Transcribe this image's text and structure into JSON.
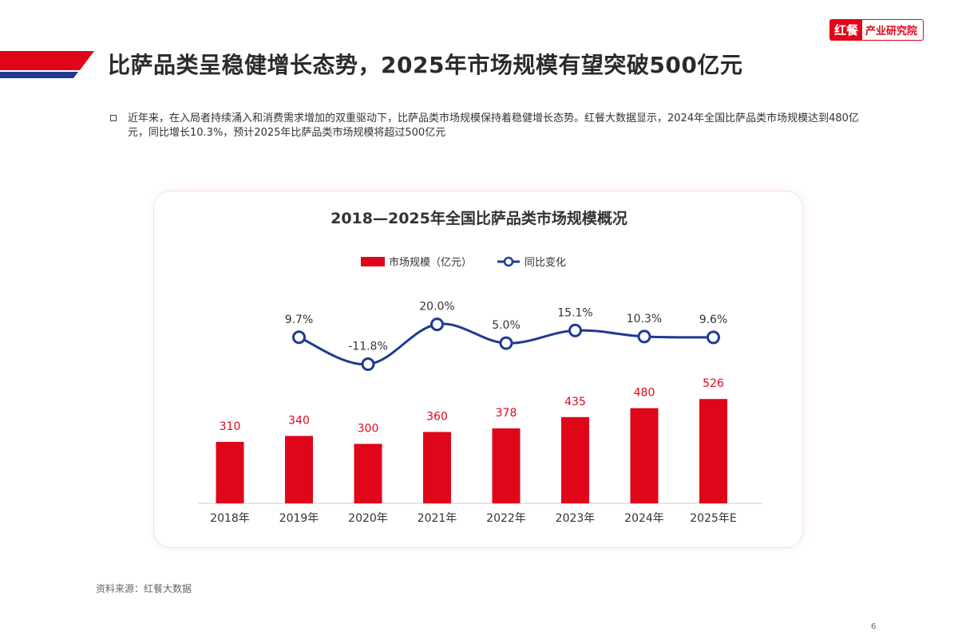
{
  "header": {
    "title": "比萨品类呈稳健增长态势，2025年市场规模有望突破500亿元",
    "logo_brand": "红餐",
    "logo_text": "产业研究院"
  },
  "intro": {
    "text": "近年来，在入局者持续涌入和消费需求增加的双重驱动下，比萨品类市场规模保持着稳健增长态势。红餐大数据显示，2024年全国比萨品类市场规模达到480亿元，同比增长10.3%，预计2025年比萨品类市场规模将超过500亿元"
  },
  "colors": {
    "bar": "#e0061a",
    "line": "#1f3a93",
    "stripe_red": "#e0061a",
    "stripe_blue": "#1f3a93"
  },
  "chart_data": {
    "type": "bar",
    "title": "2018—2025年全国比萨品类市场规模概况",
    "categories": [
      "2018年",
      "2019年",
      "2020年",
      "2021年",
      "2022年",
      "2023年",
      "2024年",
      "2025年E"
    ],
    "series": [
      {
        "name": "市场规模（亿元）",
        "type": "bar",
        "values": [
          310,
          340,
          300,
          360,
          378,
          435,
          480,
          526
        ],
        "labels": [
          "310",
          "340",
          "300",
          "360",
          "378",
          "435",
          "480",
          "526"
        ]
      },
      {
        "name": "同比变化",
        "type": "line",
        "values": [
          null,
          9.7,
          -11.8,
          20.0,
          5.0,
          15.1,
          10.3,
          9.6
        ],
        "labels": [
          "",
          "9.7%",
          "-11.8%",
          "20.0%",
          "5.0%",
          "15.1%",
          "10.3%",
          "9.6%"
        ]
      }
    ],
    "legend_position": "top-center",
    "grid": false
  },
  "footer": {
    "source": "资料来源：红餐大数据",
    "page_number": "6"
  }
}
